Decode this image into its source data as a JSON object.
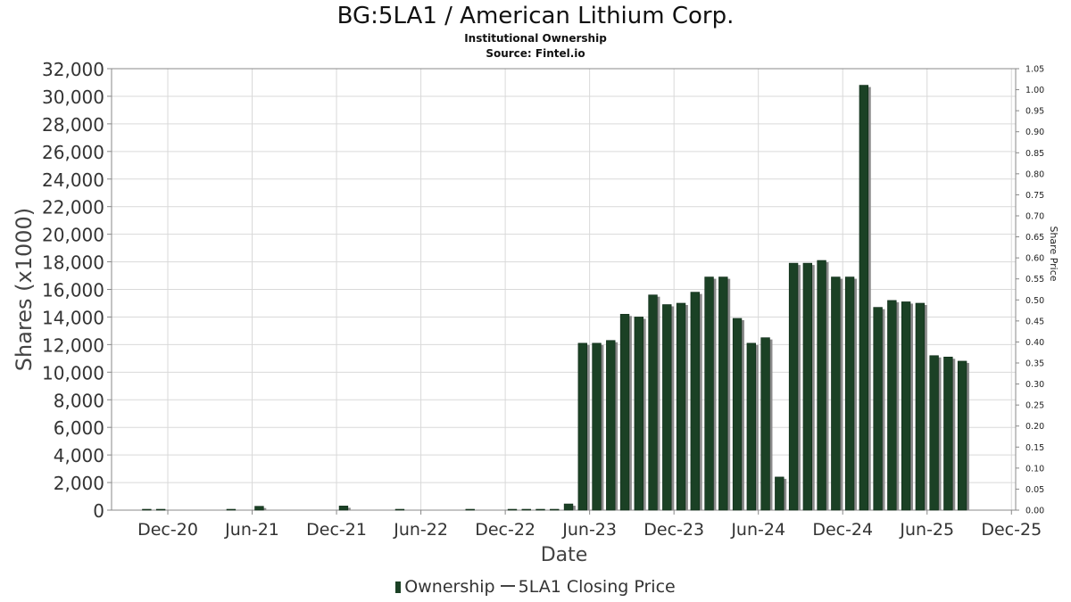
{
  "title": "BG:5LA1 / American Lithium Corp.",
  "subtitle1": "Institutional Ownership",
  "subtitle2": "Source: Fintel.io",
  "legend": {
    "ownership": "Ownership",
    "price": "5LA1 Closing Price"
  },
  "colors": {
    "bar": "#1b4125",
    "bar_shadow": "#8a8a8a",
    "grid": "#d9d9d9",
    "axis": "#888888"
  },
  "chart_data": {
    "type": "bar",
    "title": "BG:5LA1 / American Lithium Corp.",
    "xlabel": "Date",
    "ylabel": "Shares (x1000)",
    "y2label": "Share Price",
    "ylim": [
      0,
      32000
    ],
    "y2lim": [
      0,
      1.05
    ],
    "yticks": [
      "0",
      "2,000",
      "4,000",
      "6,000",
      "8,000",
      "10,000",
      "12,000",
      "14,000",
      "16,000",
      "18,000",
      "20,000",
      "22,000",
      "24,000",
      "26,000",
      "28,000",
      "30,000",
      "32,000"
    ],
    "y2ticks": [
      "0.00",
      "0.05",
      "0.10",
      "0.15",
      "0.20",
      "0.25",
      "0.30",
      "0.35",
      "0.40",
      "0.45",
      "0.50",
      "0.55",
      "0.60",
      "0.65",
      "0.70",
      "0.75",
      "0.80",
      "0.85",
      "0.90",
      "0.95",
      "1.00",
      "1.05"
    ],
    "xticks": [
      "Dec-20",
      "Jun-21",
      "Dec-21",
      "Jun-22",
      "Dec-22",
      "Jun-23",
      "Dec-23",
      "Jun-24",
      "Dec-24",
      "Jun-25",
      "Dec-25"
    ],
    "grid": true,
    "legend_position": "bottom",
    "series": [
      {
        "name": "Ownership",
        "points": [
          {
            "x": "2020-10",
            "y": 30
          },
          {
            "x": "2020-11",
            "y": 30
          },
          {
            "x": "2021-04",
            "y": 50
          },
          {
            "x": "2021-06",
            "y": 280
          },
          {
            "x": "2021-12",
            "y": 300
          },
          {
            "x": "2022-04",
            "y": 60
          },
          {
            "x": "2022-09",
            "y": 30
          },
          {
            "x": "2022-12",
            "y": 30
          },
          {
            "x": "2023-01",
            "y": 30
          },
          {
            "x": "2023-02",
            "y": 30
          },
          {
            "x": "2023-03",
            "y": 30
          },
          {
            "x": "2023-04",
            "y": 450
          },
          {
            "x": "2023-05",
            "y": 12100
          },
          {
            "x": "2023-06",
            "y": 12100
          },
          {
            "x": "2023-07",
            "y": 12300
          },
          {
            "x": "2023-08",
            "y": 14200
          },
          {
            "x": "2023-09",
            "y": 14000
          },
          {
            "x": "2023-10",
            "y": 15600
          },
          {
            "x": "2023-11",
            "y": 14900
          },
          {
            "x": "2023-12",
            "y": 15000
          },
          {
            "x": "2024-01",
            "y": 15800
          },
          {
            "x": "2024-02",
            "y": 16900
          },
          {
            "x": "2024-03",
            "y": 16900
          },
          {
            "x": "2024-04",
            "y": 13900
          },
          {
            "x": "2024-05",
            "y": 12100
          },
          {
            "x": "2024-06",
            "y": 12500
          },
          {
            "x": "2024-07",
            "y": 2400
          },
          {
            "x": "2024-08",
            "y": 17900
          },
          {
            "x": "2024-09",
            "y": 17900
          },
          {
            "x": "2024-10",
            "y": 18100
          },
          {
            "x": "2024-11",
            "y": 16900
          },
          {
            "x": "2024-12",
            "y": 16900
          },
          {
            "x": "2025-01",
            "y": 30800
          },
          {
            "x": "2025-02",
            "y": 14700
          },
          {
            "x": "2025-03",
            "y": 15200
          },
          {
            "x": "2025-04",
            "y": 15100
          },
          {
            "x": "2025-05",
            "y": 15000
          },
          {
            "x": "2025-06",
            "y": 11200
          },
          {
            "x": "2025-07",
            "y": 11100
          },
          {
            "x": "2025-08",
            "y": 10800
          }
        ]
      }
    ]
  }
}
